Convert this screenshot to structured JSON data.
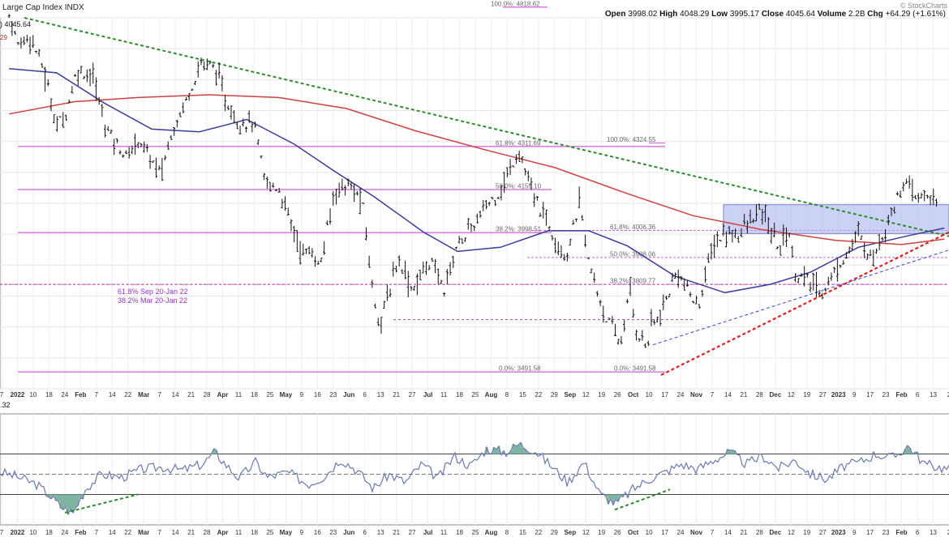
{
  "header": {
    "symbol_name": "Large Cap Index",
    "exchange": "INDX",
    "brand": "© StockCharts",
    "ohlc": [
      {
        "label": "Open",
        "value": "3998.02"
      },
      {
        "label": "High",
        "value": "4048.29"
      },
      {
        "label": "Low",
        "value": "3995.17"
      },
      {
        "label": "Close",
        "value": "4045.64"
      },
      {
        "label": "Volume",
        "value": "2.2B"
      },
      {
        "label": "Chg",
        "value": "+64.29 (+1.61%)"
      }
    ],
    "left_overlay_1": ") 4045.64",
    "left_overlay_2": "29",
    "indicator_value": "32"
  },
  "chart_data": [
    {
      "type": "ohlc",
      "name": "price",
      "ylim": [
        3430,
        4780
      ],
      "price_series": [
        [
          "2022-01-03",
          4790
        ],
        [
          "2022-01-07",
          4680
        ],
        [
          "2022-01-12",
          4720
        ],
        [
          "2022-01-18",
          4600
        ],
        [
          "2022-01-24",
          4390
        ],
        [
          "2022-01-28",
          4430
        ],
        [
          "2022-02-02",
          4590
        ],
        [
          "2022-02-09",
          4570
        ],
        [
          "2022-02-14",
          4400
        ],
        [
          "2022-02-18",
          4340
        ],
        [
          "2022-02-24",
          4270
        ],
        [
          "2022-03-01",
          4340
        ],
        [
          "2022-03-07",
          4260
        ],
        [
          "2022-03-11",
          4210
        ],
        [
          "2022-03-16",
          4370
        ],
        [
          "2022-03-21",
          4460
        ],
        [
          "2022-03-29",
          4620
        ],
        [
          "2022-04-04",
          4600
        ],
        [
          "2022-04-08",
          4490
        ],
        [
          "2022-04-14",
          4400
        ],
        [
          "2022-04-21",
          4400
        ],
        [
          "2022-04-26",
          4180
        ],
        [
          "2022-05-02",
          4160
        ],
        [
          "2022-05-09",
          4000
        ],
        [
          "2022-05-12",
          3930
        ],
        [
          "2022-05-18",
          3920
        ],
        [
          "2022-05-20",
          3860
        ],
        [
          "2022-05-27",
          4160
        ],
        [
          "2022-06-02",
          4170
        ],
        [
          "2022-06-08",
          4110
        ],
        [
          "2022-06-13",
          3760
        ],
        [
          "2022-06-16",
          3670
        ],
        [
          "2022-06-24",
          3910
        ],
        [
          "2022-06-30",
          3790
        ],
        [
          "2022-07-08",
          3900
        ],
        [
          "2022-07-14",
          3790
        ],
        [
          "2022-07-20",
          3960
        ],
        [
          "2022-07-27",
          4020
        ],
        [
          "2022-08-02",
          4100
        ],
        [
          "2022-08-08",
          4150
        ],
        [
          "2022-08-16",
          4300
        ],
        [
          "2022-08-22",
          4140
        ],
        [
          "2022-08-29",
          4030
        ],
        [
          "2022-09-06",
          3910
        ],
        [
          "2022-09-12",
          4110
        ],
        [
          "2022-09-16",
          3880
        ],
        [
          "2022-09-23",
          3700
        ],
        [
          "2022-09-30",
          3590
        ],
        [
          "2022-10-04",
          3790
        ],
        [
          "2022-10-07",
          3640
        ],
        [
          "2022-10-12",
          3580
        ],
        [
          "2022-10-13",
          3670
        ],
        [
          "2022-10-17",
          3680
        ],
        [
          "2022-10-25",
          3860
        ],
        [
          "2022-11-03",
          3720
        ],
        [
          "2022-11-10",
          3960
        ],
        [
          "2022-11-15",
          3990
        ],
        [
          "2022-11-22",
          4000
        ],
        [
          "2022-12-01",
          4080
        ],
        [
          "2022-12-09",
          3940
        ],
        [
          "2022-12-13",
          4020
        ],
        [
          "2022-12-16",
          3850
        ],
        [
          "2022-12-22",
          3820
        ],
        [
          "2022-12-28",
          3780
        ],
        [
          "2023-01-06",
          3900
        ],
        [
          "2023-01-13",
          3990
        ],
        [
          "2023-01-19",
          3900
        ],
        [
          "2023-01-25",
          4020
        ],
        [
          "2023-02-02",
          4180
        ],
        [
          "2023-02-08",
          4120
        ],
        [
          "2023-02-13",
          4140
        ],
        [
          "2023-02-17",
          4080
        ]
      ],
      "moving_averages": [
        {
          "color": "#3b3b9a",
          "values": [
            [
              "2022-01-03",
              4595
            ],
            [
              "2022-01-24",
              4580
            ],
            [
              "2022-02-14",
              4470
            ],
            [
              "2022-03-07",
              4375
            ],
            [
              "2022-03-28",
              4365
            ],
            [
              "2022-04-18",
              4410
            ],
            [
              "2022-05-09",
              4320
            ],
            [
              "2022-05-27",
              4220
            ],
            [
              "2022-06-13",
              4130
            ],
            [
              "2022-07-05",
              4000
            ],
            [
              "2022-07-20",
              3930
            ],
            [
              "2022-08-08",
              3945
            ],
            [
              "2022-08-29",
              4005
            ],
            [
              "2022-09-16",
              4005
            ],
            [
              "2022-10-03",
              3950
            ],
            [
              "2022-10-24",
              3840
            ],
            [
              "2022-11-15",
              3780
            ],
            [
              "2022-12-05",
              3810
            ],
            [
              "2022-12-23",
              3855
            ],
            [
              "2023-01-13",
              3945
            ],
            [
              "2023-02-03",
              3985
            ],
            [
              "2023-02-20",
              4015
            ]
          ]
        },
        {
          "color": "#d04040",
          "values": [
            [
              "2022-01-03",
              4430
            ],
            [
              "2022-02-01",
              4475
            ],
            [
              "2022-03-01",
              4490
            ],
            [
              "2022-04-01",
              4500
            ],
            [
              "2022-05-02",
              4490
            ],
            [
              "2022-06-01",
              4450
            ],
            [
              "2022-07-01",
              4370
            ],
            [
              "2022-08-01",
              4300
            ],
            [
              "2022-09-01",
              4235
            ],
            [
              "2022-10-03",
              4140
            ],
            [
              "2022-11-01",
              4060
            ],
            [
              "2022-12-01",
              4010
            ],
            [
              "2023-01-03",
              3970
            ],
            [
              "2023-02-01",
              3955
            ],
            [
              "2023-02-20",
              3975
            ]
          ]
        }
      ],
      "fibonacci_retracements": [
        {
          "label": "100.0%: 4818.62",
          "value": 4818.62
        },
        {
          "label": "61.8%: 4311.69",
          "value": 4311.69
        },
        {
          "label": "50.0%: 4155.10",
          "value": 4155.1
        },
        {
          "label": "38.2%: 3998.51",
          "value": 3998.51
        },
        {
          "label": "0.0%: 3491.58",
          "value": 3491.58
        },
        {
          "label": "100.0%: 4324.55",
          "value": 4324.55
        },
        {
          "label": "61.8%: 4006.36",
          "value": 4006.36
        },
        {
          "label": "50.0%: 3908.06",
          "value": 3908.06
        },
        {
          "label": "38.2%: 3809.77",
          "value": 3809.77
        },
        {
          "label": "0.0%: 3491.58",
          "value": 3491.58
        }
      ],
      "annotations": [
        "61.8% Sep 20-Jan 22",
        "38.2% Mar 20-Jan 22"
      ],
      "x_tick_labels": [
        "7",
        "2022",
        "10",
        "18",
        "24",
        "Feb",
        "7",
        "14",
        "22",
        "Mar",
        "7",
        "14",
        "21",
        "28",
        "Apr",
        "11",
        "18",
        "25",
        "May",
        "9",
        "16",
        "23",
        "Jun",
        "6",
        "13",
        "21",
        "27",
        "Jul",
        "11",
        "18",
        "25",
        "Aug",
        "8",
        "15",
        "22",
        "29",
        "Sep",
        "12",
        "19",
        "26",
        "Oct",
        "10",
        "17",
        "24",
        "Nov",
        "7",
        "14",
        "21",
        "28",
        "Dec",
        "12",
        "19",
        "27",
        "2023",
        "9",
        "17",
        "23",
        "Feb",
        "6",
        "13",
        "2"
      ]
    },
    {
      "type": "line",
      "name": "oscillator",
      "ylim": [
        0,
        100
      ],
      "reference_lines": [
        30,
        50,
        70
      ],
      "values": [
        [
          0,
          52
        ],
        [
          20,
          48
        ],
        [
          45,
          40
        ],
        [
          60,
          30
        ],
        [
          75,
          18
        ],
        [
          90,
          12
        ],
        [
          105,
          35
        ],
        [
          125,
          50
        ],
        [
          150,
          47
        ],
        [
          175,
          55
        ],
        [
          200,
          57
        ],
        [
          225,
          54
        ],
        [
          250,
          60
        ],
        [
          265,
          72
        ],
        [
          280,
          58
        ],
        [
          295,
          46
        ],
        [
          315,
          62
        ],
        [
          330,
          47
        ],
        [
          355,
          52
        ],
        [
          380,
          40
        ],
        [
          400,
          48
        ],
        [
          420,
          65
        ],
        [
          440,
          54
        ],
        [
          460,
          36
        ],
        [
          480,
          50
        ],
        [
          500,
          42
        ],
        [
          520,
          60
        ],
        [
          540,
          46
        ],
        [
          560,
          68
        ],
        [
          580,
          58
        ],
        [
          600,
          75
        ],
        [
          625,
          72
        ],
        [
          640,
          80
        ],
        [
          660,
          73
        ],
        [
          680,
          58
        ],
        [
          700,
          42
        ],
        [
          720,
          62
        ],
        [
          740,
          30
        ],
        [
          760,
          21
        ],
        [
          780,
          35
        ],
        [
          800,
          45
        ],
        [
          820,
          52
        ],
        [
          840,
          60
        ],
        [
          860,
          55
        ],
        [
          880,
          64
        ],
        [
          900,
          72
        ],
        [
          920,
          60
        ],
        [
          940,
          68
        ],
        [
          960,
          56
        ],
        [
          980,
          64
        ],
        [
          1000,
          50
        ],
        [
          1020,
          45
        ],
        [
          1040,
          58
        ],
        [
          1060,
          62
        ],
        [
          1080,
          70
        ],
        [
          1100,
          66
        ],
        [
          1120,
          78
        ],
        [
          1140,
          60
        ],
        [
          1170,
          55
        ]
      ]
    }
  ]
}
